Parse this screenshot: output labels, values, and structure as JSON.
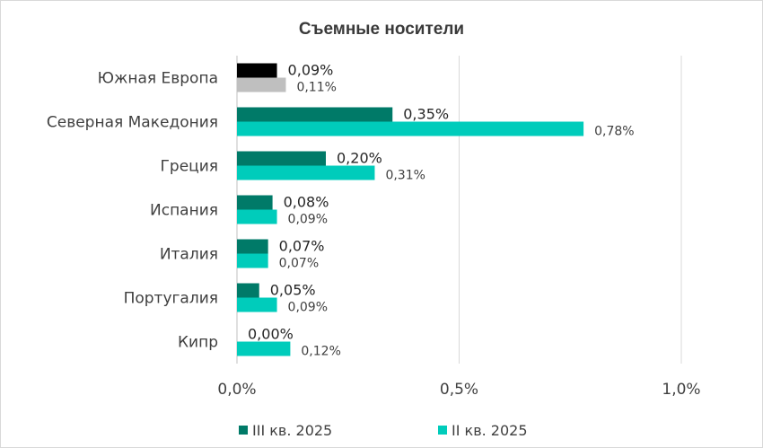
{
  "chart_data": {
    "type": "bar",
    "orientation": "horizontal",
    "title": "Съемные носители",
    "categories": [
      "Южная Европа",
      "Северная Македония",
      "Греция",
      "Испания",
      "Италия",
      "Португалия",
      "Кипр"
    ],
    "series": [
      {
        "name": "III кв. 2025",
        "values": [
          0.09,
          0.35,
          0.2,
          0.08,
          0.07,
          0.05,
          0.0
        ],
        "labels": [
          "0,09%",
          "0,35%",
          "0,20%",
          "0,08%",
          "0,07%",
          "0,05%",
          "0,00%"
        ],
        "color": "#007A68",
        "first_bar_color": "#000000"
      },
      {
        "name": "II кв. 2025",
        "values": [
          0.11,
          0.78,
          0.31,
          0.09,
          0.07,
          0.09,
          0.12
        ],
        "labels": [
          "0,11%",
          "0,78%",
          "0,31%",
          "0,09%",
          "0,07%",
          "0,09%",
          "0,12%"
        ],
        "color": "#00CCBB",
        "first_bar_color": "#BFBFBF"
      }
    ],
    "xlim": [
      0,
      1.0
    ],
    "ticks": [
      0,
      0.5,
      1.0
    ],
    "tick_labels": [
      "0,0%",
      "0,5%",
      "1,0%"
    ],
    "grid": true,
    "legend_position": "bottom"
  }
}
